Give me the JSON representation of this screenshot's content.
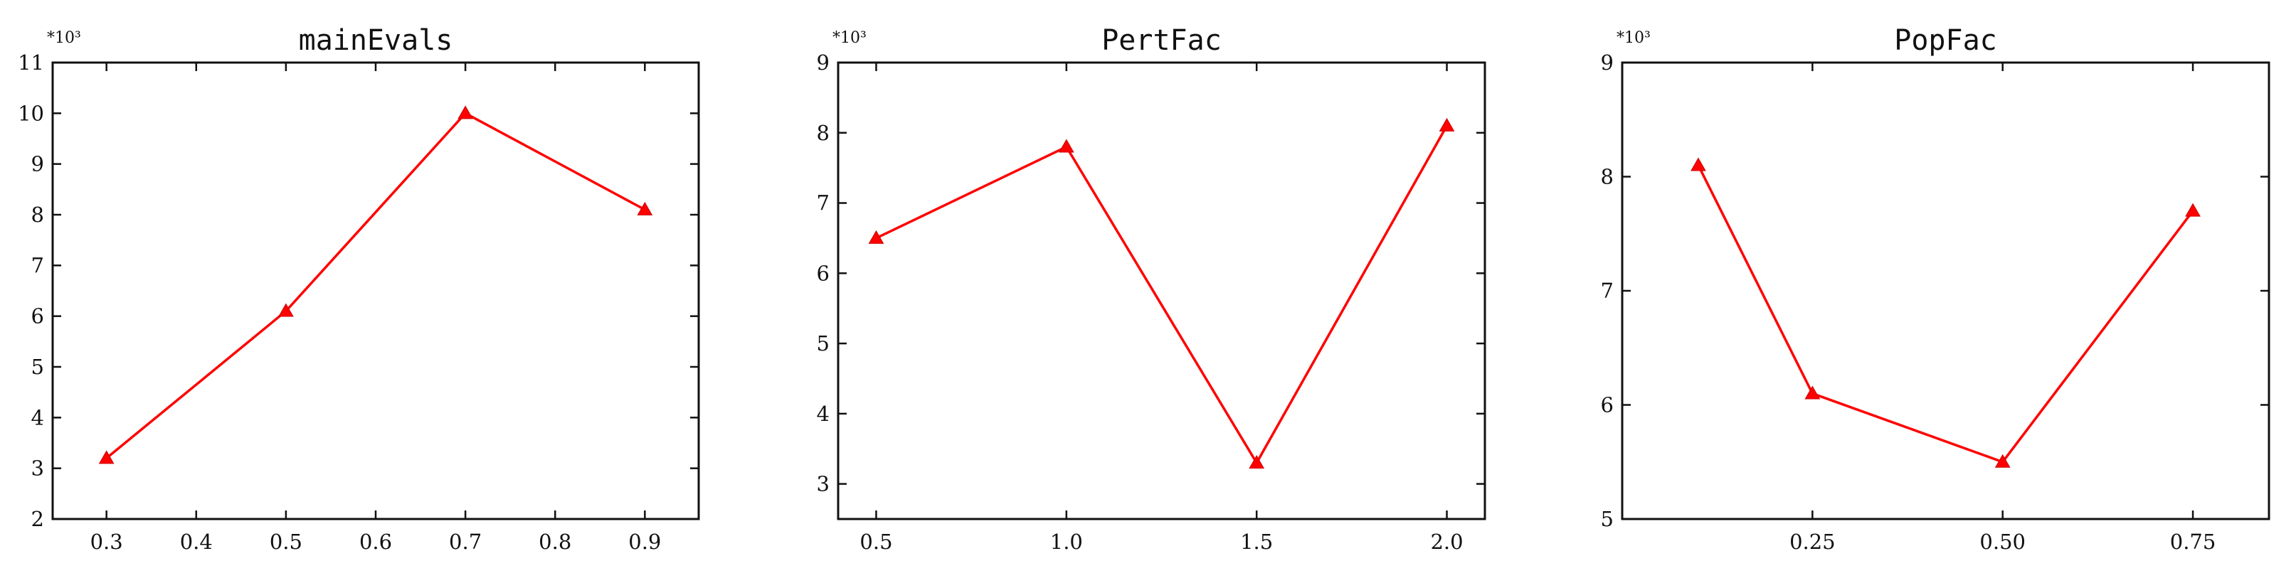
{
  "chart_data": [
    {
      "type": "line",
      "title": "mainEvals",
      "y_multiplier": "*10³",
      "x": [
        0.3,
        0.5,
        0.7,
        0.9
      ],
      "y": [
        3.2,
        6.1,
        10.0,
        8.1
      ],
      "xlim": [
        0.24,
        0.96
      ],
      "ylim": [
        2,
        11
      ],
      "xticks": [
        0.3,
        0.4,
        0.5,
        0.6,
        0.7,
        0.8,
        0.9
      ],
      "xtick_labels": [
        "0.3",
        "0.4",
        "0.5",
        "0.6",
        "0.7",
        "0.8",
        "0.9"
      ],
      "yticks": [
        2,
        3,
        4,
        5,
        6,
        7,
        8,
        9,
        10,
        11
      ],
      "ytick_labels": [
        "2",
        "3",
        "4",
        "5",
        "6",
        "7",
        "8",
        "9",
        "10",
        "11"
      ],
      "series_color": "#ff0000",
      "marker": "triangle",
      "grid": false
    },
    {
      "type": "line",
      "title": "PertFac",
      "y_multiplier": "*10³",
      "x": [
        0.5,
        1.0,
        1.5,
        2.0
      ],
      "y": [
        6.5,
        7.8,
        3.3,
        8.1
      ],
      "xlim": [
        0.4,
        2.1
      ],
      "ylim": [
        2.5,
        9
      ],
      "xticks": [
        0.5,
        1.0,
        1.5,
        2.0
      ],
      "xtick_labels": [
        "0.5",
        "1.0",
        "1.5",
        "2.0"
      ],
      "yticks": [
        3,
        4,
        5,
        6,
        7,
        8,
        9
      ],
      "ytick_labels": [
        "3",
        "4",
        "5",
        "6",
        "7",
        "8",
        "9"
      ],
      "series_color": "#ff0000",
      "marker": "triangle",
      "grid": false
    },
    {
      "type": "line",
      "title": "PopFac",
      "y_multiplier": "*10³",
      "x": [
        0.1,
        0.25,
        0.5,
        0.75
      ],
      "y": [
        8.1,
        6.1,
        5.5,
        7.7
      ],
      "xlim": [
        0.0,
        0.85
      ],
      "ylim": [
        5,
        9
      ],
      "xticks": [
        0.25,
        0.5,
        0.75
      ],
      "xtick_labels": [
        "0.25",
        "0.50",
        "0.75"
      ],
      "yticks": [
        5,
        6,
        7,
        8,
        9
      ],
      "ytick_labels": [
        "5",
        "6",
        "7",
        "8",
        "9"
      ],
      "series_color": "#ff0000",
      "marker": "triangle",
      "grid": false
    }
  ]
}
